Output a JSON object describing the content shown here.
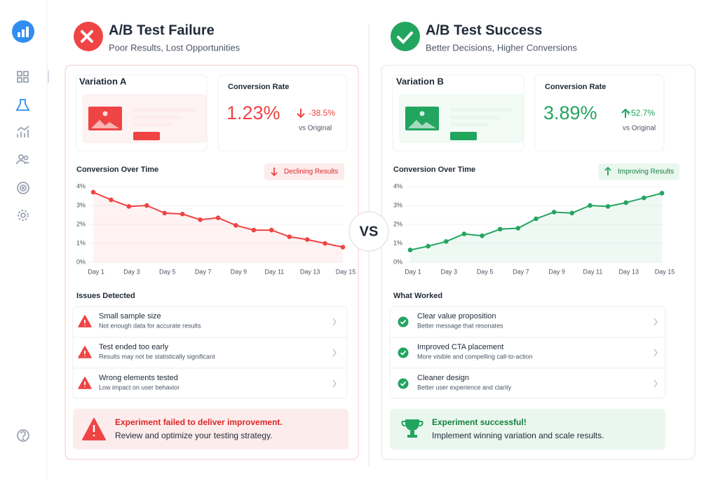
{
  "panels": [
    {
      "title": "A/B Test Failure",
      "subtitle": "Poor Results, Lost Opportunities",
      "variation": "Variation A",
      "metric_label": "Conversion Rate",
      "metric_value": "1.23%",
      "change": "-38.5%",
      "change_note": "vs Original",
      "list_heading": "Issues Detected",
      "items": [
        {
          "title": "Small sample size",
          "desc": "Not enough data for accurate results"
        },
        {
          "title": "Test ended too early",
          "desc": "Results may not be statistically significant"
        },
        {
          "title": "Wrong elements tested",
          "desc": "Low impact on user behavior"
        }
      ],
      "alert": {
        "title": "Experiment failed to deliver improvement.",
        "text": "Review and optimize your testing strategy."
      }
    },
    {
      "title": "A/B Test Success",
      "subtitle": "Better Decisions, Higher Conversions",
      "variation": "Variation B",
      "metric_label": "Conversion Rate",
      "metric_value": "3.89%",
      "change": "+52.7%",
      "change_note": "vs Original",
      "list_heading": "What Worked",
      "items": [
        {
          "title": "Clear value proposition",
          "desc": "Better message that resonates"
        },
        {
          "title": "Improved CTA placement",
          "desc": "More visible and compelling call-to-action"
        },
        {
          "title": "Cleaner design",
          "desc": "Better user experience and clarity"
        }
      ],
      "alert": {
        "title": "Experiment successful!",
        "text": "Implement winning variation and scale results."
      }
    }
  ],
  "vs": "VS",
  "chart_data": [
    {
      "type": "line",
      "title": "Conversion Over Time",
      "annotation": "Declining Results",
      "color": "#ef4444",
      "categories": [
        "Day 1",
        null,
        "Day 3",
        null,
        "Day 5",
        null,
        "Day 7",
        null,
        "Day 9",
        null,
        "Day 11",
        null,
        "Day 13",
        null,
        "Day 15"
      ],
      "values": [
        3.7,
        3.3,
        2.95,
        3.0,
        2.6,
        2.55,
        2.25,
        2.35,
        1.95,
        1.7,
        1.7,
        1.35,
        1.2,
        1.0,
        0.8
      ],
      "ylim": [
        0,
        4
      ],
      "yticks": [
        {
          "value": 0,
          "label": "0%"
        },
        {
          "value": 1,
          "label": "1%"
        },
        {
          "value": 2,
          "label": "2%"
        },
        {
          "value": 3,
          "label": "3%"
        },
        {
          "value": 4,
          "label": "4%"
        }
      ],
      "grid": true
    },
    {
      "type": "line",
      "title": "Conversion Over Time",
      "annotation": "Improving Results",
      "color": "#22a55f",
      "categories": [
        "Day 1",
        null,
        "Day 3",
        null,
        "Day 5",
        null,
        "Day 7",
        null,
        "Day 9",
        null,
        "Day 11",
        null,
        "Day 13",
        null,
        "Day 15"
      ],
      "values": [
        0.65,
        0.85,
        1.1,
        1.5,
        1.4,
        1.75,
        1.8,
        2.3,
        2.65,
        2.6,
        3.0,
        2.95,
        3.15,
        3.4,
        3.65
      ],
      "ylim": [
        0,
        4
      ],
      "yticks": [
        {
          "value": 0,
          "label": "0%"
        },
        {
          "value": 1,
          "label": "1%"
        },
        {
          "value": 2,
          "label": "2%"
        },
        {
          "value": 3,
          "label": "3%"
        },
        {
          "value": 4,
          "label": "4%"
        }
      ],
      "grid": true
    }
  ]
}
